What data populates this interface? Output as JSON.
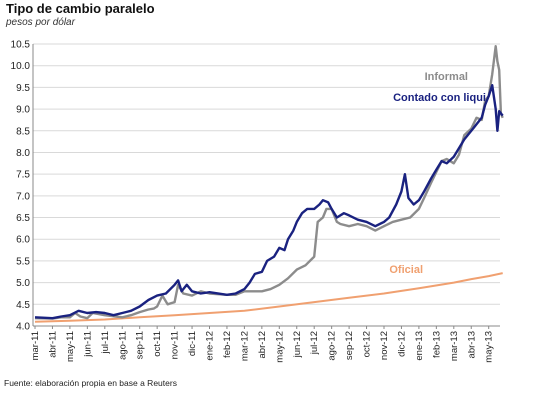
{
  "chart_data": {
    "type": "line",
    "title": "Tipo de cambio paralelo",
    "subtitle": "pesos por dólar",
    "source": "Fuente: elaboración propia en base a Reuters",
    "ylim": [
      4.0,
      10.5
    ],
    "yticks": [
      "4.0",
      "4.5",
      "5.0",
      "5.5",
      "6.0",
      "6.5",
      "7.0",
      "7.5",
      "8.0",
      "8.5",
      "9.0",
      "9.5",
      "10.0",
      "10.5"
    ],
    "categories": [
      "mar-11",
      "abr-11",
      "may-11",
      "jun-11",
      "jul-11",
      "ago-11",
      "sep-11",
      "oct-11",
      "nov-11",
      "dic-11",
      "ene-12",
      "feb-12",
      "mar-12",
      "abr-12",
      "may-12",
      "jun-12",
      "jul-12",
      "ago-12",
      "sep-12",
      "oct-12",
      "nov-12",
      "dic-12",
      "ene-13",
      "feb-13",
      "mar-13",
      "abr-13",
      "may-13"
    ],
    "grid": true,
    "series": [
      {
        "name": "Informal",
        "color": "#8c8c8c",
        "points": [
          [
            0,
            4.18
          ],
          [
            1,
            4.17
          ],
          [
            1.5,
            4.2
          ],
          [
            2,
            4.2
          ],
          [
            2.3,
            4.3
          ],
          [
            2.6,
            4.22
          ],
          [
            3,
            4.18
          ],
          [
            3.3,
            4.3
          ],
          [
            4,
            4.25
          ],
          [
            5,
            4.2
          ],
          [
            5.5,
            4.25
          ],
          [
            6,
            4.32
          ],
          [
            6.5,
            4.38
          ],
          [
            6.8,
            4.4
          ],
          [
            7,
            4.45
          ],
          [
            7.3,
            4.7
          ],
          [
            7.6,
            4.5
          ],
          [
            8,
            4.55
          ],
          [
            8.2,
            4.95
          ],
          [
            8.5,
            4.75
          ],
          [
            9,
            4.7
          ],
          [
            9.5,
            4.8
          ],
          [
            10,
            4.75
          ],
          [
            11,
            4.72
          ],
          [
            11.5,
            4.72
          ],
          [
            12,
            4.8
          ],
          [
            12.5,
            4.8
          ],
          [
            13,
            4.8
          ],
          [
            13.5,
            4.85
          ],
          [
            14,
            4.95
          ],
          [
            14.5,
            5.1
          ],
          [
            15,
            5.3
          ],
          [
            15.5,
            5.4
          ],
          [
            16,
            5.6
          ],
          [
            16.2,
            6.4
          ],
          [
            16.5,
            6.5
          ],
          [
            16.7,
            6.7
          ],
          [
            17,
            6.7
          ],
          [
            17.3,
            6.4
          ],
          [
            17.5,
            6.35
          ],
          [
            18,
            6.3
          ],
          [
            18.5,
            6.35
          ],
          [
            19,
            6.3
          ],
          [
            19.5,
            6.2
          ],
          [
            20,
            6.3
          ],
          [
            20.5,
            6.4
          ],
          [
            21,
            6.45
          ],
          [
            21.5,
            6.5
          ],
          [
            22,
            6.7
          ],
          [
            22.3,
            6.95
          ],
          [
            22.7,
            7.3
          ],
          [
            23,
            7.55
          ],
          [
            23.3,
            7.8
          ],
          [
            23.6,
            7.85
          ],
          [
            24,
            7.75
          ],
          [
            24.3,
            7.95
          ],
          [
            24.6,
            8.4
          ],
          [
            25,
            8.55
          ],
          [
            25.3,
            8.8
          ],
          [
            25.6,
            8.75
          ],
          [
            25.8,
            9.2
          ],
          [
            26,
            9.3
          ],
          [
            26.2,
            9.8
          ],
          [
            26.4,
            10.45
          ],
          [
            26.5,
            10.1
          ],
          [
            26.6,
            9.9
          ],
          [
            26.7,
            8.9
          ],
          [
            26.8,
            8.8
          ]
        ]
      },
      {
        "name": "Contado con liqui",
        "color": "#1a2280",
        "points": [
          [
            0,
            4.2
          ],
          [
            1,
            4.18
          ],
          [
            1.5,
            4.22
          ],
          [
            2,
            4.25
          ],
          [
            2.5,
            4.35
          ],
          [
            3,
            4.3
          ],
          [
            3.5,
            4.32
          ],
          [
            4,
            4.3
          ],
          [
            4.5,
            4.25
          ],
          [
            5,
            4.3
          ],
          [
            5.5,
            4.35
          ],
          [
            6,
            4.45
          ],
          [
            6.5,
            4.6
          ],
          [
            7,
            4.7
          ],
          [
            7.5,
            4.75
          ],
          [
            8,
            4.95
          ],
          [
            8.2,
            5.05
          ],
          [
            8.4,
            4.8
          ],
          [
            8.7,
            4.95
          ],
          [
            9,
            4.8
          ],
          [
            9.5,
            4.75
          ],
          [
            10,
            4.78
          ],
          [
            11,
            4.72
          ],
          [
            11.5,
            4.75
          ],
          [
            12,
            4.85
          ],
          [
            12.3,
            5.0
          ],
          [
            12.6,
            5.2
          ],
          [
            13,
            5.25
          ],
          [
            13.3,
            5.5
          ],
          [
            13.7,
            5.6
          ],
          [
            14,
            5.8
          ],
          [
            14.3,
            5.75
          ],
          [
            14.5,
            6.0
          ],
          [
            14.8,
            6.2
          ],
          [
            15,
            6.4
          ],
          [
            15.3,
            6.6
          ],
          [
            15.6,
            6.7
          ],
          [
            16,
            6.7
          ],
          [
            16.3,
            6.8
          ],
          [
            16.5,
            6.9
          ],
          [
            16.8,
            6.85
          ],
          [
            17,
            6.7
          ],
          [
            17.3,
            6.5
          ],
          [
            17.7,
            6.6
          ],
          [
            18,
            6.55
          ],
          [
            18.5,
            6.45
          ],
          [
            19,
            6.4
          ],
          [
            19.5,
            6.3
          ],
          [
            20,
            6.4
          ],
          [
            20.3,
            6.5
          ],
          [
            20.7,
            6.8
          ],
          [
            21,
            7.1
          ],
          [
            21.2,
            7.5
          ],
          [
            21.4,
            6.95
          ],
          [
            21.7,
            6.8
          ],
          [
            22,
            6.9
          ],
          [
            22.3,
            7.1
          ],
          [
            22.7,
            7.4
          ],
          [
            23,
            7.6
          ],
          [
            23.3,
            7.8
          ],
          [
            23.6,
            7.75
          ],
          [
            24,
            7.9
          ],
          [
            24.3,
            8.1
          ],
          [
            24.6,
            8.3
          ],
          [
            25,
            8.5
          ],
          [
            25.3,
            8.65
          ],
          [
            25.6,
            8.8
          ],
          [
            25.8,
            9.1
          ],
          [
            26,
            9.3
          ],
          [
            26.2,
            9.55
          ],
          [
            26.4,
            9.0
          ],
          [
            26.5,
            8.5
          ],
          [
            26.6,
            8.95
          ],
          [
            26.7,
            8.9
          ],
          [
            26.8,
            8.85
          ]
        ]
      },
      {
        "name": "Oficial",
        "color": "#f0a070",
        "points": [
          [
            0,
            4.1
          ],
          [
            2,
            4.12
          ],
          [
            4,
            4.15
          ],
          [
            6,
            4.2
          ],
          [
            8,
            4.25
          ],
          [
            10,
            4.3
          ],
          [
            12,
            4.35
          ],
          [
            14,
            4.45
          ],
          [
            16,
            4.55
          ],
          [
            18,
            4.65
          ],
          [
            20,
            4.75
          ],
          [
            22,
            4.87
          ],
          [
            24,
            5.0
          ],
          [
            25,
            5.08
          ],
          [
            26,
            5.15
          ],
          [
            26.8,
            5.22
          ]
        ]
      }
    ],
    "labels": {
      "informal": "Informal",
      "contado": "Contado con liqui",
      "oficial": "Oficial"
    }
  }
}
